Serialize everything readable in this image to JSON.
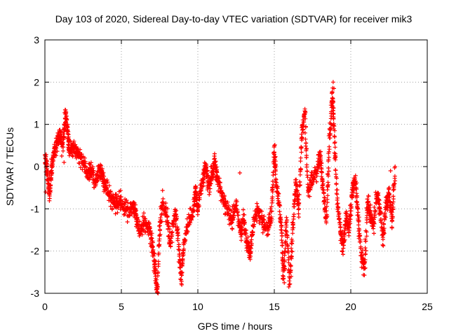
{
  "chart_data": {
    "type": "scatter",
    "title": "Day 103 of 2020, Sidereal Day-to-day VTEC variation (SDTVAR) for receiver mik3",
    "xlabel": "GPS time / hours",
    "ylabel": "SDTVAR / TECUs",
    "xlim": [
      0,
      25
    ],
    "ylim": [
      -3,
      3
    ],
    "xticks": [
      0,
      5,
      10,
      15,
      20,
      25
    ],
    "yticks": [
      -3,
      -2,
      -1,
      0,
      1,
      2,
      3
    ],
    "grid": true,
    "marker": "+",
    "color": "#ff0000",
    "series": [
      {
        "name": "SDTVAR mik3",
        "trace": [
          [
            0.0,
            0.2
          ],
          [
            0.15,
            -0.1
          ],
          [
            0.3,
            -0.7
          ],
          [
            0.45,
            0.0
          ],
          [
            0.6,
            0.3
          ],
          [
            0.8,
            0.6
          ],
          [
            1.0,
            0.8
          ],
          [
            1.2,
            0.5
          ],
          [
            1.35,
            1.3
          ],
          [
            1.5,
            0.8
          ],
          [
            1.6,
            0.3
          ],
          [
            1.8,
            0.5
          ],
          [
            2.0,
            0.4
          ],
          [
            2.2,
            0.3
          ],
          [
            2.5,
            0.1
          ],
          [
            2.8,
            -0.2
          ],
          [
            3.0,
            -0.1
          ],
          [
            3.3,
            -0.4
          ],
          [
            3.6,
            0.0
          ],
          [
            3.8,
            -0.3
          ],
          [
            4.0,
            -0.5
          ],
          [
            4.3,
            -0.7
          ],
          [
            4.6,
            -0.9
          ],
          [
            4.9,
            -0.8
          ],
          [
            5.2,
            -1.0
          ],
          [
            5.5,
            -1.1
          ],
          [
            5.8,
            -0.9
          ],
          [
            6.0,
            -1.2
          ],
          [
            6.2,
            -1.6
          ],
          [
            6.5,
            -1.3
          ],
          [
            6.8,
            -1.4
          ],
          [
            7.0,
            -1.8
          ],
          [
            7.2,
            -2.4
          ],
          [
            7.35,
            -3.0
          ],
          [
            7.5,
            -1.5
          ],
          [
            7.7,
            -0.8
          ],
          [
            8.0,
            -1.2
          ],
          [
            8.2,
            -1.9
          ],
          [
            8.5,
            -1.0
          ],
          [
            8.7,
            -1.6
          ],
          [
            8.9,
            -2.7
          ],
          [
            9.1,
            -1.8
          ],
          [
            9.4,
            -1.3
          ],
          [
            9.7,
            -1.1
          ],
          [
            9.85,
            -0.5
          ],
          [
            10.0,
            -1.0
          ],
          [
            10.3,
            -0.3
          ],
          [
            10.5,
            0.0
          ],
          [
            10.7,
            -0.5
          ],
          [
            10.9,
            -0.2
          ],
          [
            11.1,
            0.1
          ],
          [
            11.3,
            -0.3
          ],
          [
            11.6,
            -0.7
          ],
          [
            11.9,
            -1.0
          ],
          [
            12.2,
            -1.3
          ],
          [
            12.5,
            -0.9
          ],
          [
            12.8,
            -1.6
          ],
          [
            13.0,
            -1.2
          ],
          [
            13.2,
            -1.8
          ],
          [
            13.4,
            -2.1
          ],
          [
            13.6,
            -1.4
          ],
          [
            13.9,
            -1.0
          ],
          [
            14.2,
            -1.3
          ],
          [
            14.5,
            -1.5
          ],
          [
            14.8,
            -1.2
          ],
          [
            15.0,
            0.4
          ],
          [
            15.1,
            -0.3
          ],
          [
            15.3,
            -0.8
          ],
          [
            15.5,
            -1.7
          ],
          [
            15.6,
            -2.7
          ],
          [
            15.8,
            -1.3
          ],
          [
            16.0,
            -2.8
          ],
          [
            16.2,
            -1.5
          ],
          [
            16.4,
            -0.4
          ],
          [
            16.6,
            -1.0
          ],
          [
            16.8,
            0.8
          ],
          [
            17.0,
            1.3
          ],
          [
            17.2,
            -0.6
          ],
          [
            17.5,
            -0.3
          ],
          [
            17.8,
            -0.1
          ],
          [
            18.0,
            0.3
          ],
          [
            18.2,
            -0.5
          ],
          [
            18.4,
            -1.3
          ],
          [
            18.6,
            0.6
          ],
          [
            18.8,
            1.7
          ],
          [
            18.9,
            1.0
          ],
          [
            19.1,
            -0.8
          ],
          [
            19.3,
            -1.5
          ],
          [
            19.5,
            -1.9
          ],
          [
            19.7,
            -1.2
          ],
          [
            19.9,
            -1.5
          ],
          [
            20.1,
            -0.5
          ],
          [
            20.3,
            -0.3
          ],
          [
            20.5,
            -1.3
          ],
          [
            20.7,
            -2.1
          ],
          [
            20.9,
            -2.4
          ],
          [
            21.1,
            -0.8
          ],
          [
            21.3,
            -1.2
          ],
          [
            21.5,
            -1.4
          ],
          [
            21.7,
            -0.6
          ],
          [
            21.9,
            -1.0
          ],
          [
            22.1,
            -1.7
          ],
          [
            22.3,
            -0.9
          ],
          [
            22.5,
            -0.6
          ],
          [
            22.7,
            -1.3
          ],
          [
            22.9,
            0.0
          ]
        ],
        "extra_points": [
          [
            0.05,
            -0.6
          ],
          [
            0.1,
            0.15
          ],
          [
            0.3,
            -0.2
          ],
          [
            1.1,
            0.25
          ],
          [
            1.25,
            0.1
          ],
          [
            1.4,
            1.2
          ],
          [
            3.75,
            -0.05
          ],
          [
            3.9,
            -0.55
          ],
          [
            7.4,
            -3.0
          ],
          [
            7.3,
            -2.9
          ],
          [
            8.95,
            -2.8
          ],
          [
            9.0,
            -2.2
          ],
          [
            12.75,
            -0.15
          ],
          [
            13.35,
            -2.15
          ],
          [
            15.55,
            -2.65
          ],
          [
            15.65,
            -2.75
          ],
          [
            15.95,
            -2.85
          ],
          [
            16.1,
            -2.6
          ],
          [
            18.85,
            2.0
          ],
          [
            18.9,
            1.85
          ],
          [
            18.8,
            1.5
          ],
          [
            18.95,
            0.85
          ],
          [
            20.95,
            -2.4
          ],
          [
            20.85,
            -2.25
          ],
          [
            22.6,
            -0.1
          ],
          [
            22.85,
            -0.4
          ]
        ]
      }
    ]
  }
}
